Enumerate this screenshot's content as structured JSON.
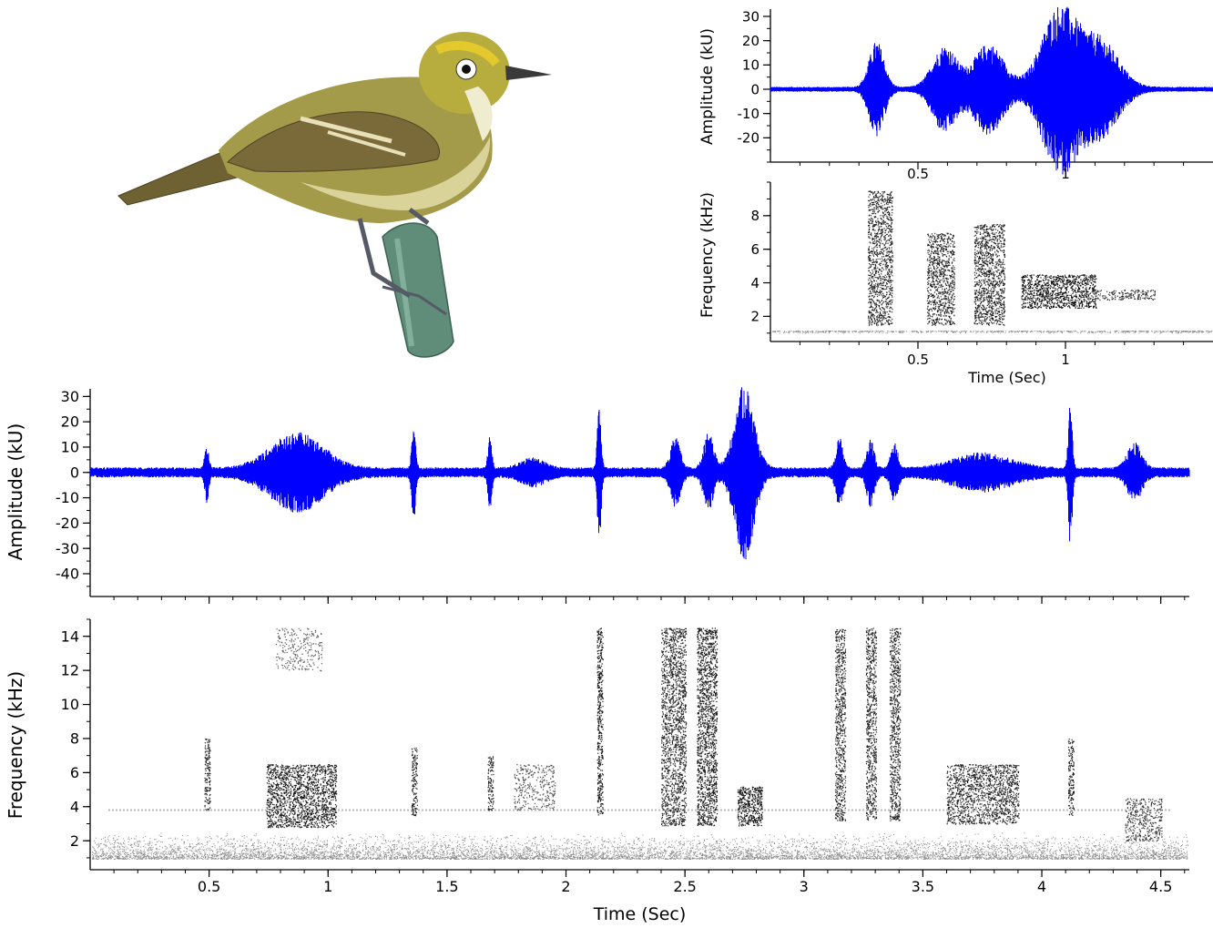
{
  "colors": {
    "waveform": "#0000ff",
    "axis": "#000000",
    "spectrogram_ink": "#000000",
    "background": "#ffffff"
  },
  "illustration": {
    "subject": "bird-perched-on-stem"
  },
  "chart_data": [
    {
      "id": "inset-waveform",
      "type": "line",
      "title": "",
      "xlabel": "",
      "ylabel": "Amplitude (kU)",
      "xlim": [
        0,
        1.5
      ],
      "ylim": [
        -30,
        33
      ],
      "xticks": [
        0.5,
        1
      ],
      "xtick_labels": [
        "0.5",
        "1"
      ],
      "yticks": [
        30,
        20,
        10,
        0,
        -10,
        -20
      ],
      "ytick_labels": [
        "30",
        "20",
        "10",
        "0",
        "-10",
        "-20"
      ],
      "series": [
        {
          "baseline_noise": 1,
          "bursts": [
            {
              "t": 0.36,
              "w": 0.025,
              "amp": 19
            },
            {
              "t": 0.59,
              "w": 0.04,
              "amp": 17
            },
            {
              "t": 0.74,
              "w": 0.05,
              "amp": 18
            },
            {
              "t": 0.98,
              "w": 0.06,
              "amp": 33
            },
            {
              "t": 1.12,
              "w": 0.06,
              "amp": 19
            }
          ]
        }
      ]
    },
    {
      "id": "inset-spectrogram",
      "type": "heatmap",
      "title": "",
      "xlabel": "Time (Sec)",
      "ylabel": "Frequency (kHz)",
      "xlim": [
        0,
        1.5
      ],
      "ylim": [
        0.5,
        10
      ],
      "xticks": [
        0.5,
        1
      ],
      "xtick_labels": [
        "0.5",
        "1"
      ],
      "yticks": [
        8,
        6,
        4,
        2
      ],
      "ytick_labels": [
        "8",
        "6",
        "4",
        "2"
      ],
      "noise_floor_khz": 1.0,
      "elements": [
        {
          "t0": 0.33,
          "t1": 0.41,
          "f_low": 1.5,
          "f_high": 9.5,
          "intensity": 0.8
        },
        {
          "t0": 0.53,
          "t1": 0.62,
          "f_low": 1.5,
          "f_high": 7.0,
          "intensity": 0.8
        },
        {
          "t0": 0.69,
          "t1": 0.79,
          "f_low": 1.5,
          "f_high": 7.5,
          "intensity": 0.85
        },
        {
          "t0": 0.85,
          "t1": 1.1,
          "f_low": 2.5,
          "f_high": 4.5,
          "intensity": 1.0
        },
        {
          "t0": 1.1,
          "t1": 1.3,
          "f_low": 3.0,
          "f_high": 3.6,
          "intensity": 0.7
        }
      ]
    },
    {
      "id": "main-waveform",
      "type": "line",
      "title": "",
      "xlabel": "",
      "ylabel": "Amplitude (kU)",
      "xlim": [
        0,
        4.62
      ],
      "ylim": [
        -49,
        33
      ],
      "xticks": [
        0.5,
        1,
        1.5,
        2,
        2.5,
        3,
        3.5,
        4,
        4.5
      ],
      "yticks": [
        30,
        20,
        10,
        0,
        -10,
        -20,
        -30,
        -40
      ],
      "ytick_labels": [
        "30",
        "20",
        "10",
        "0",
        "-10",
        "-20",
        "-30",
        "-40"
      ],
      "series": [
        {
          "baseline_noise": 2,
          "bursts": [
            {
              "t": 0.49,
              "w": 0.008,
              "amp": 10
            },
            {
              "t": 0.87,
              "w": 0.11,
              "amp": 14
            },
            {
              "t": 1.36,
              "w": 0.008,
              "amp": 18
            },
            {
              "t": 1.68,
              "w": 0.008,
              "amp": 13
            },
            {
              "t": 1.86,
              "w": 0.05,
              "amp": 4
            },
            {
              "t": 2.14,
              "w": 0.008,
              "amp": 26
            },
            {
              "t": 2.46,
              "w": 0.02,
              "amp": 12
            },
            {
              "t": 2.6,
              "w": 0.02,
              "amp": 14
            },
            {
              "t": 2.75,
              "w": 0.04,
              "amp": 33
            },
            {
              "t": 3.15,
              "w": 0.015,
              "amp": 12
            },
            {
              "t": 3.28,
              "w": 0.015,
              "amp": 12
            },
            {
              "t": 3.38,
              "w": 0.015,
              "amp": 10
            },
            {
              "t": 3.75,
              "w": 0.12,
              "amp": 6
            },
            {
              "t": 4.12,
              "w": 0.008,
              "amp": 28
            },
            {
              "t": 4.39,
              "w": 0.03,
              "amp": 10
            }
          ]
        }
      ]
    },
    {
      "id": "main-spectrogram",
      "type": "heatmap",
      "title": "",
      "xlabel": "Time (Sec)",
      "ylabel": "Frequency (kHz)",
      "xlim": [
        0,
        4.62
      ],
      "ylim": [
        0.3,
        15
      ],
      "xticks": [
        0.5,
        1,
        1.5,
        2,
        2.5,
        3,
        3.5,
        4,
        4.5
      ],
      "xtick_labels": [
        "0.5",
        "1",
        "1.5",
        "2",
        "2.5",
        "3",
        "3.5",
        "4",
        "4.5"
      ],
      "yticks": [
        14,
        12,
        10,
        8,
        6,
        4,
        2
      ],
      "ytick_labels": [
        "14",
        "12",
        "10",
        "8",
        "6",
        "4",
        "2"
      ],
      "noise_floor_khz": 2.5,
      "background_tone_khz": 3.8,
      "elements": [
        {
          "t0": 0.48,
          "t1": 0.5,
          "f_low": 3.8,
          "f_high": 8.0,
          "intensity": 0.8
        },
        {
          "t0": 0.74,
          "t1": 1.03,
          "f_low": 2.8,
          "f_high": 6.5,
          "intensity": 0.9
        },
        {
          "t0": 0.78,
          "t1": 0.97,
          "f_low": 12.0,
          "f_high": 14.5,
          "intensity": 0.3
        },
        {
          "t0": 1.35,
          "t1": 1.37,
          "f_low": 3.5,
          "f_high": 7.5,
          "intensity": 0.8
        },
        {
          "t0": 1.67,
          "t1": 1.69,
          "f_low": 3.8,
          "f_high": 7.0,
          "intensity": 0.8
        },
        {
          "t0": 1.78,
          "t1": 1.95,
          "f_low": 3.8,
          "f_high": 6.5,
          "intensity": 0.4
        },
        {
          "t0": 2.13,
          "t1": 2.15,
          "f_low": 3.5,
          "f_high": 14.5,
          "intensity": 0.9
        },
        {
          "t0": 2.4,
          "t1": 2.5,
          "f_low": 2.9,
          "f_high": 14.5,
          "intensity": 0.8
        },
        {
          "t0": 2.55,
          "t1": 2.63,
          "f_low": 2.9,
          "f_high": 14.5,
          "intensity": 0.9
        },
        {
          "t0": 2.72,
          "t1": 2.82,
          "f_low": 2.9,
          "f_high": 5.2,
          "intensity": 1.0
        },
        {
          "t0": 3.13,
          "t1": 3.17,
          "f_low": 3.2,
          "f_high": 14.5,
          "intensity": 0.8
        },
        {
          "t0": 3.26,
          "t1": 3.3,
          "f_low": 3.2,
          "f_high": 14.5,
          "intensity": 0.8
        },
        {
          "t0": 3.36,
          "t1": 3.4,
          "f_low": 3.2,
          "f_high": 14.5,
          "intensity": 0.8
        },
        {
          "t0": 3.6,
          "t1": 3.9,
          "f_low": 3.0,
          "f_high": 6.5,
          "intensity": 0.8
        },
        {
          "t0": 4.11,
          "t1": 4.13,
          "f_low": 3.5,
          "f_high": 8.0,
          "intensity": 0.8
        },
        {
          "t0": 4.35,
          "t1": 4.5,
          "f_low": 2.0,
          "f_high": 4.5,
          "intensity": 0.6
        }
      ]
    }
  ]
}
